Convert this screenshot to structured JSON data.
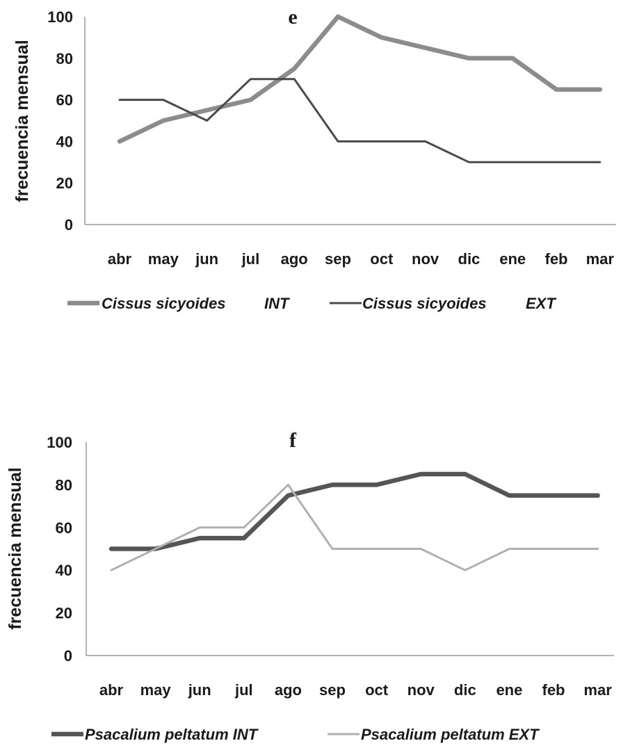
{
  "chart_data": [
    {
      "type": "line",
      "title": "e",
      "xlabel": "",
      "ylabel": "frecuencia mensual",
      "ylim": [
        0,
        100
      ],
      "yticks": [
        0,
        20,
        40,
        60,
        80,
        100
      ],
      "grid": false,
      "legend_placement": "bottom",
      "categories": [
        "abr",
        "may",
        "jun",
        "jul",
        "ago",
        "sep",
        "oct",
        "nov",
        "dic",
        "ene",
        "feb",
        "mar"
      ],
      "series": [
        {
          "name": "Cissus sicyoides",
          "suffix": "INT",
          "color": "#8c8c8c",
          "values": [
            40,
            50,
            55,
            60,
            75,
            100,
            90,
            85,
            80,
            80,
            65,
            65
          ]
        },
        {
          "name": "Cissus sicyoides",
          "suffix": "EXT",
          "color": "#4a4a4a",
          "values": [
            60,
            60,
            50,
            70,
            70,
            40,
            40,
            40,
            30,
            30,
            30,
            30
          ]
        }
      ]
    },
    {
      "type": "line",
      "title": "f",
      "xlabel": "",
      "ylabel": "frecuencia mensual",
      "ylim": [
        0,
        100
      ],
      "yticks": [
        0,
        20,
        40,
        60,
        80,
        100
      ],
      "grid": false,
      "legend_placement": "bottom",
      "categories": [
        "abr",
        "may",
        "jun",
        "jul",
        "ago",
        "sep",
        "oct",
        "nov",
        "dic",
        "ene",
        "feb",
        "mar"
      ],
      "series": [
        {
          "name": "Psacalium peltatum INT",
          "suffix": "",
          "color": "#555555",
          "values": [
            50,
            50,
            55,
            55,
            75,
            80,
            80,
            85,
            85,
            75,
            75,
            75
          ]
        },
        {
          "name": "Psacalium peltatum EXT",
          "suffix": "",
          "color": "#b0b0b0",
          "values": [
            40,
            50,
            60,
            60,
            80,
            50,
            50,
            50,
            40,
            50,
            50,
            50
          ]
        }
      ]
    }
  ]
}
